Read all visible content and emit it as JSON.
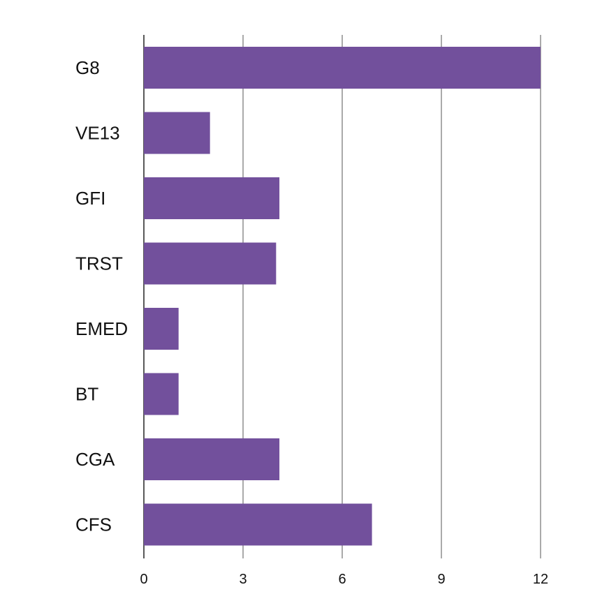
{
  "chart_data": {
    "type": "bar",
    "orientation": "horizontal",
    "categories": [
      "G8",
      "VE13",
      "GFI",
      "TRST",
      "EMED",
      "BT",
      "CGA",
      "CFS"
    ],
    "values": [
      12,
      2,
      4.1,
      4,
      1.05,
      1.05,
      4.1,
      6.9
    ],
    "xlim": [
      0,
      12
    ],
    "x_ticks": [
      "0",
      "3",
      "6",
      "9",
      "12"
    ],
    "grid": true,
    "legend": "none",
    "title": "",
    "xlabel": "",
    "ylabel": "",
    "colors": {
      "bar": "#72509c",
      "grid": "#555555",
      "axis": "#222222"
    }
  }
}
